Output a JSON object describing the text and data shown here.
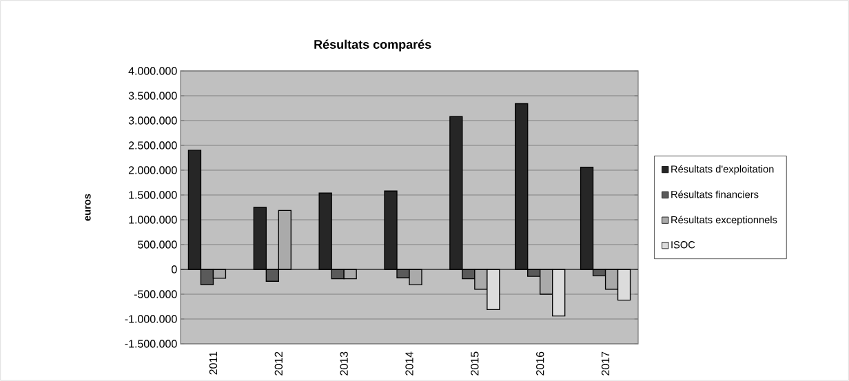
{
  "chart_data": {
    "type": "bar",
    "title": "Résultats comparés",
    "ylabel": "euros",
    "categories": [
      "2011",
      "2012",
      "2013",
      "2014",
      "2015",
      "2016",
      "2017"
    ],
    "series": [
      {
        "name": "Résultats d'exploitation",
        "color": "#262626",
        "values": [
          2400000,
          1250000,
          1540000,
          1580000,
          3080000,
          3340000,
          2060000
        ]
      },
      {
        "name": "Résultats financiers",
        "color": "#5a5a5a",
        "values": [
          -310000,
          -240000,
          -190000,
          -170000,
          -190000,
          -140000,
          -130000
        ]
      },
      {
        "name": "Résultats exceptionnels",
        "color": "#aaaaaa",
        "values": [
          -180000,
          1190000,
          -190000,
          -310000,
          -400000,
          -500000,
          -400000
        ]
      },
      {
        "name": "ISOC",
        "color": "#dcdcdc",
        "values": [
          null,
          null,
          null,
          null,
          -810000,
          -940000,
          -620000
        ]
      }
    ],
    "ylim": [
      -1500000,
      4000000
    ],
    "yticks": [
      {
        "value": -1500000,
        "label": "-1.500.000"
      },
      {
        "value": -1000000,
        "label": "-1.000.000"
      },
      {
        "value": -500000,
        "label": "-500.000"
      },
      {
        "value": 0,
        "label": "0"
      },
      {
        "value": 500000,
        "label": "500.000"
      },
      {
        "value": 1000000,
        "label": "1.000.000"
      },
      {
        "value": 1500000,
        "label": "1.500.000"
      },
      {
        "value": 2000000,
        "label": "2.000.000"
      },
      {
        "value": 2500000,
        "label": "2.500.000"
      },
      {
        "value": 3000000,
        "label": "3.000.000"
      },
      {
        "value": 3500000,
        "label": "3.500.000"
      },
      {
        "value": 4000000,
        "label": "4.000.000"
      }
    ],
    "grid": "y",
    "legend": "right"
  }
}
